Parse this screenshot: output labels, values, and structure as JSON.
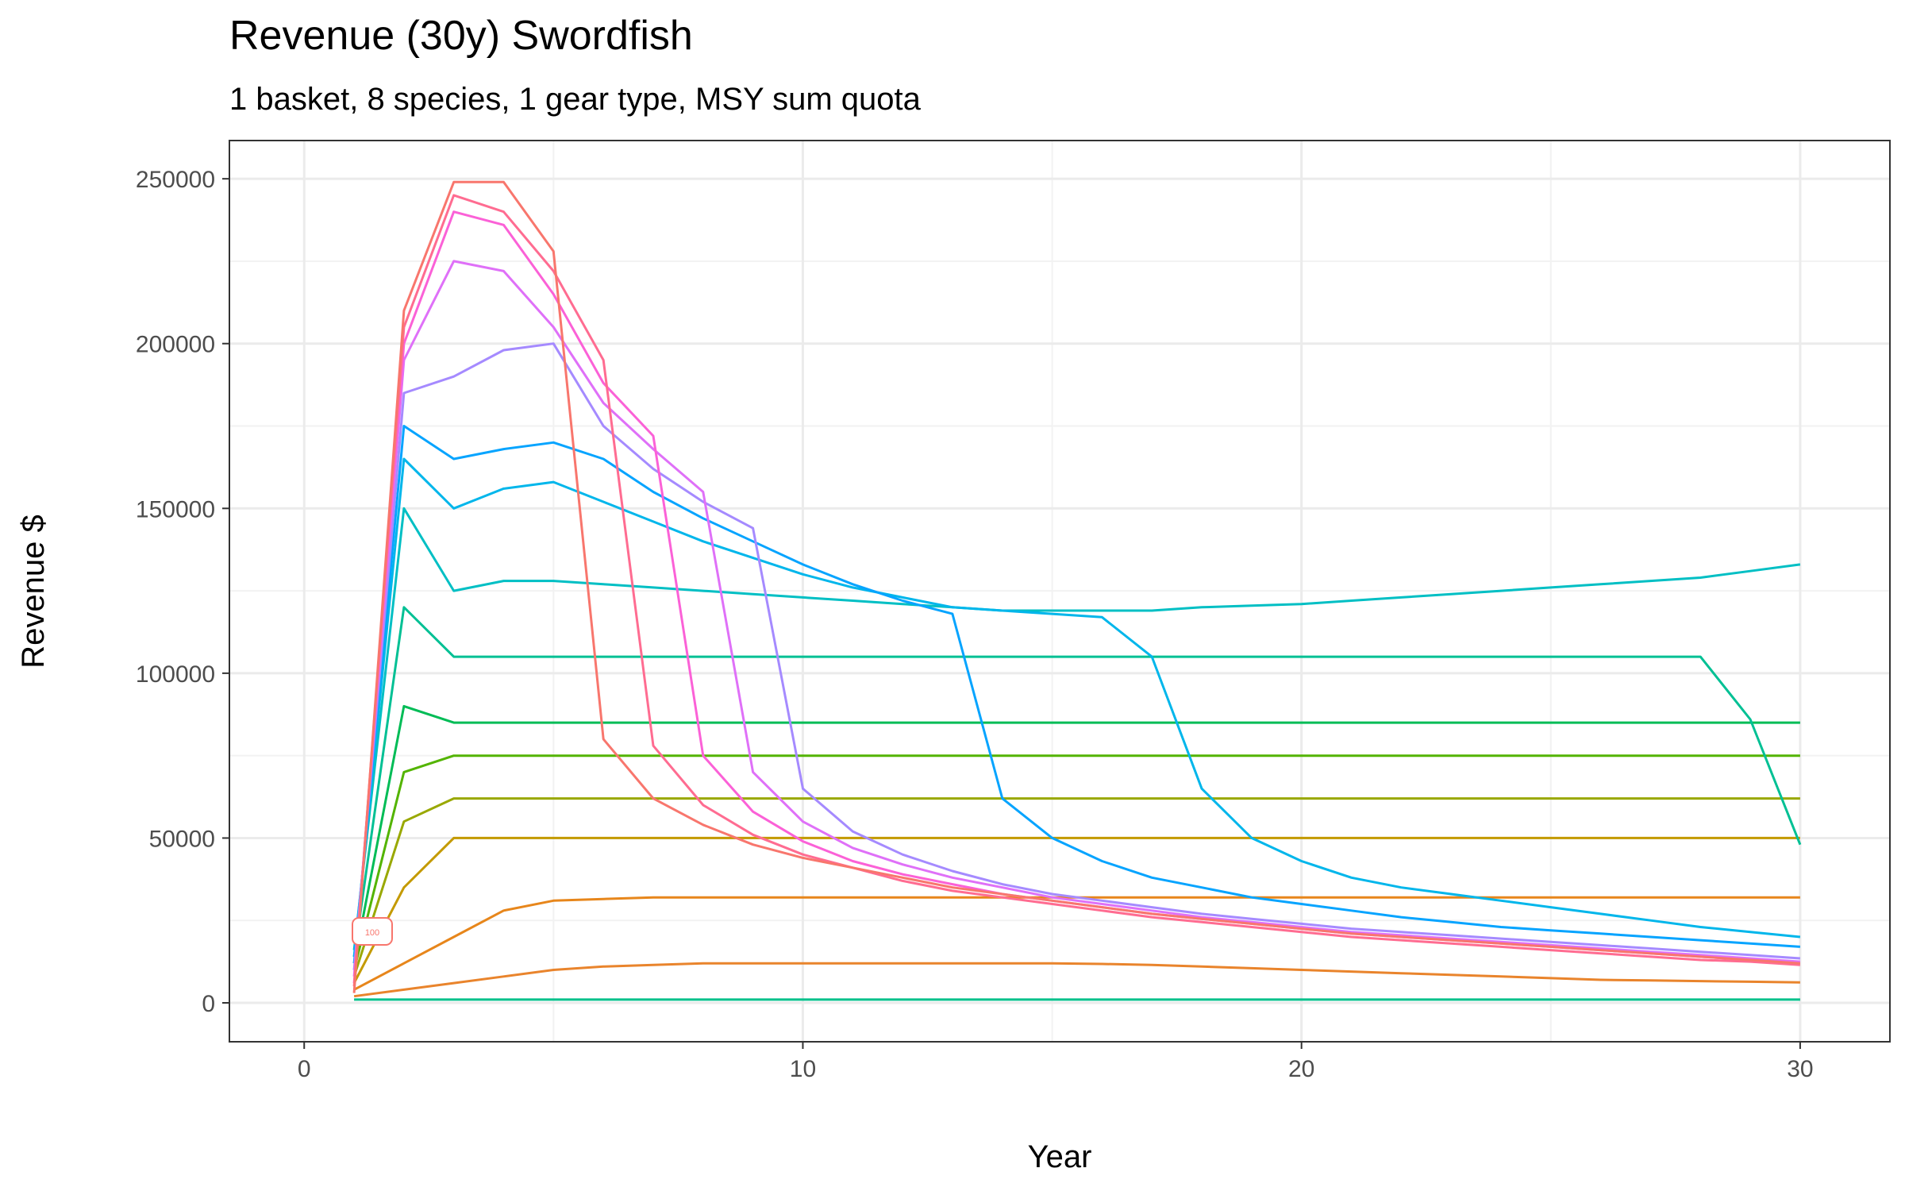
{
  "chart_data": {
    "type": "line",
    "title": "Revenue (30y) Swordfish",
    "subtitle": "1 basket, 8 species, 1 gear type, MSY sum quota",
    "x_label": "Year",
    "y_label": "Revenue $",
    "annotation": "100",
    "xlim": [
      -1.5,
      31.8
    ],
    "ylim": [
      -11800,
      261600
    ],
    "xticks": [
      0,
      10,
      20,
      30
    ],
    "yticks": [
      0,
      50000,
      100000,
      150000,
      200000,
      250000
    ],
    "grid": true,
    "x": [
      1,
      2,
      3,
      4,
      5,
      6,
      7,
      8,
      9,
      10,
      11,
      12,
      13,
      14,
      15,
      16,
      17,
      18,
      19,
      20,
      21,
      22,
      23,
      24,
      25,
      26,
      27,
      28,
      29,
      30
    ],
    "series": [
      {
        "color": "#00C08B",
        "values": [
          1000,
          1000,
          1000,
          1000,
          1000,
          1000,
          1000,
          1000,
          1000,
          1000,
          1000,
          1000,
          1000,
          1000,
          1000,
          1000,
          1000,
          1000,
          1000,
          1000,
          1000,
          1000,
          1000,
          1000,
          1000,
          1000,
          1000,
          1000,
          1000,
          1000
        ]
      },
      {
        "color": "#E9842C",
        "values": [
          2000,
          4000,
          6000,
          8000,
          10000,
          11000,
          11500,
          12000,
          12000,
          12000,
          12000,
          12000,
          12000,
          12000,
          12000,
          11800,
          11500,
          11000,
          10500,
          10000,
          9500,
          9000,
          8500,
          8000,
          7500,
          7000,
          6800,
          6600,
          6400,
          6200
        ]
      },
      {
        "color": "#E7861B",
        "values": [
          4000,
          12000,
          20000,
          28000,
          31000,
          31500,
          32000,
          32000,
          32000,
          32000,
          32000,
          32000,
          32000,
          32000,
          32000,
          32000,
          32000,
          32000,
          32000,
          32000,
          32000,
          32000,
          32000,
          32000,
          32000,
          32000,
          32000,
          32000,
          32000,
          32000
        ]
      },
      {
        "color": "#C49A00",
        "values": [
          6000,
          35000,
          50000,
          50000,
          50000,
          50000,
          50000,
          50000,
          50000,
          50000,
          50000,
          50000,
          50000,
          50000,
          50000,
          50000,
          50000,
          50000,
          50000,
          50000,
          50000,
          50000,
          50000,
          50000,
          50000,
          50000,
          50000,
          50000,
          50000,
          50000
        ]
      },
      {
        "color": "#99A800",
        "values": [
          8000,
          55000,
          62000,
          62000,
          62000,
          62000,
          62000,
          62000,
          62000,
          62000,
          62000,
          62000,
          62000,
          62000,
          62000,
          62000,
          62000,
          62000,
          62000,
          62000,
          62000,
          62000,
          62000,
          62000,
          62000,
          62000,
          62000,
          62000,
          62000,
          62000
        ]
      },
      {
        "color": "#53B400",
        "values": [
          10000,
          70000,
          75000,
          75000,
          75000,
          75000,
          75000,
          75000,
          75000,
          75000,
          75000,
          75000,
          75000,
          75000,
          75000,
          75000,
          75000,
          75000,
          75000,
          75000,
          75000,
          75000,
          75000,
          75000,
          75000,
          75000,
          75000,
          75000,
          75000,
          75000
        ]
      },
      {
        "color": "#00BC56",
        "values": [
          12000,
          90000,
          85000,
          85000,
          85000,
          85000,
          85000,
          85000,
          85000,
          85000,
          85000,
          85000,
          85000,
          85000,
          85000,
          85000,
          85000,
          85000,
          85000,
          85000,
          85000,
          85000,
          85000,
          85000,
          85000,
          85000,
          85000,
          85000,
          85000,
          85000
        ]
      },
      {
        "color": "#00C094",
        "values": [
          14000,
          120000,
          105000,
          105000,
          105000,
          105000,
          105000,
          105000,
          105000,
          105000,
          105000,
          105000,
          105000,
          105000,
          105000,
          105000,
          105000,
          105000,
          105000,
          105000,
          105000,
          105000,
          105000,
          105000,
          105000,
          105000,
          105000,
          105000,
          86000,
          48000
        ]
      },
      {
        "color": "#00BFC4",
        "values": [
          16000,
          150000,
          125000,
          128000,
          128000,
          127000,
          126000,
          125000,
          124000,
          123000,
          122000,
          121000,
          120000,
          119000,
          119000,
          119000,
          119000,
          120000,
          120500,
          121000,
          122000,
          123000,
          124000,
          125000,
          126000,
          127000,
          128000,
          129000,
          131000,
          133000
        ]
      },
      {
        "color": "#00B6EB",
        "values": [
          14000,
          165000,
          150000,
          156000,
          158000,
          152000,
          146000,
          140000,
          135000,
          130000,
          126000,
          123000,
          120000,
          119000,
          118000,
          117000,
          105000,
          65000,
          50000,
          43000,
          38000,
          35000,
          33000,
          31000,
          29000,
          27000,
          25000,
          23000,
          21500,
          20000
        ]
      },
      {
        "color": "#06A4FF",
        "values": [
          12000,
          175000,
          165000,
          168000,
          170000,
          165000,
          155000,
          147000,
          140000,
          133000,
          127000,
          122000,
          118000,
          62000,
          50000,
          43000,
          38000,
          35000,
          32000,
          30000,
          28000,
          26000,
          24500,
          23000,
          22000,
          21000,
          20000,
          19000,
          18000,
          17000
        ]
      },
      {
        "color": "#A58AFF",
        "values": [
          10000,
          185000,
          190000,
          198000,
          200000,
          175000,
          162000,
          152000,
          144000,
          65000,
          52000,
          45000,
          40000,
          36000,
          33000,
          31000,
          29000,
          27000,
          25500,
          24000,
          22500,
          21500,
          20500,
          19500,
          18500,
          17500,
          16500,
          15500,
          14500,
          13500
        ]
      },
      {
        "color": "#DF70F8",
        "values": [
          8000,
          195000,
          225000,
          222000,
          205000,
          182000,
          168000,
          155000,
          70000,
          55000,
          47000,
          42000,
          38000,
          35000,
          32000,
          30000,
          28000,
          26000,
          24500,
          23000,
          21500,
          20500,
          19500,
          18500,
          17500,
          16500,
          15500,
          14500,
          13500,
          12500
        ]
      },
      {
        "color": "#FB61D7",
        "values": [
          6000,
          200000,
          240000,
          236000,
          215000,
          188000,
          172000,
          75000,
          58000,
          49000,
          43000,
          39000,
          36000,
          33000,
          31000,
          29000,
          27000,
          25500,
          24000,
          22500,
          21000,
          20000,
          19000,
          18000,
          17000,
          16000,
          15000,
          14000,
          13000,
          12000
        ]
      },
      {
        "color": "#FF6C91",
        "values": [
          5000,
          205000,
          245000,
          240000,
          222000,
          195000,
          78000,
          60000,
          51000,
          45000,
          41000,
          37000,
          34000,
          32000,
          30000,
          28000,
          26000,
          24500,
          23000,
          21500,
          20000,
          19000,
          18000,
          17000,
          16000,
          15000,
          14000,
          13000,
          12500,
          11500
        ]
      },
      {
        "color": "#F8766D",
        "values": [
          3000,
          210000,
          249000,
          249000,
          228000,
          80000,
          62000,
          54000,
          48000,
          44000,
          41000,
          38000,
          35000,
          33000,
          31000,
          29000,
          27000,
          25500,
          24000,
          22500,
          21000,
          20000,
          19000,
          18000,
          17000,
          16000,
          15000,
          14000,
          13000,
          12000
        ]
      }
    ]
  }
}
